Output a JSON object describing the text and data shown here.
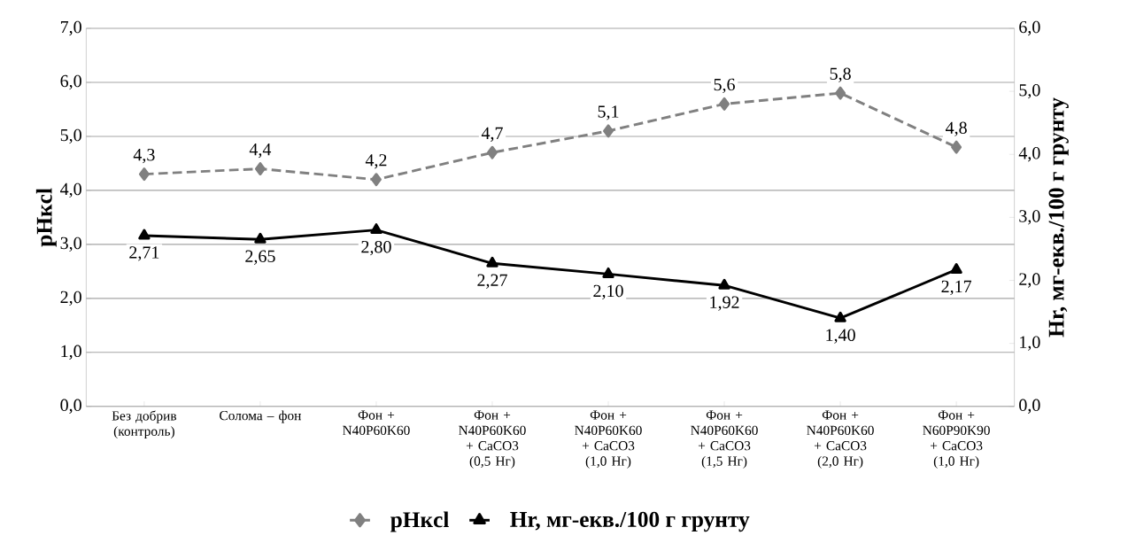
{
  "chart_data": {
    "type": "line",
    "categories": [
      "Без добрив (контроль)",
      "Солома – фон",
      "Фон + N40P60K60",
      "Фон + N40P60K60 + CaCO3 (0,5 Нг)",
      "Фон + N40P60K60 + CaCO3 (1,0 Нг)",
      "Фон + N40P60K60 + CaCO3 (1,5 Нг)",
      "Фон + N40P60K60 + CaCO3 (2,0 Нг)",
      "Фон + N60P90K90 + CaCO3 (1,0 Нг)"
    ],
    "series": [
      {
        "name": "pHкcl",
        "color": "#808080",
        "marker": "diamond",
        "line_style": "dashed",
        "values": [
          4.3,
          4.4,
          4.2,
          4.7,
          5.1,
          5.6,
          5.8,
          4.8
        ],
        "value_labels": [
          "4,3",
          "4,4",
          "4,2",
          "4,7",
          "5,1",
          "5,6",
          "5,8",
          "4,8"
        ]
      },
      {
        "name": "Hr, мг-екв./100 г грунту",
        "color": "#000000",
        "marker": "triangle",
        "line_style": "solid",
        "axis": "y2",
        "values": [
          2.71,
          2.65,
          2.8,
          2.27,
          2.1,
          1.92,
          1.4,
          2.17
        ],
        "value_labels": [
          "2,71",
          "2,65",
          "2,80",
          "2,27",
          "2,10",
          "1,92",
          "1,40",
          "2,17"
        ]
      }
    ],
    "ylabel": "pHкcl",
    "y2label": "Hr, мг-екв./100 г грунту",
    "ylim": [
      0,
      7
    ],
    "yticks": [
      {
        "value": 0,
        "label": "0,0"
      },
      {
        "value": 1,
        "label": "1,0"
      },
      {
        "value": 2,
        "label": "2,0"
      },
      {
        "value": 3,
        "label": "3,0"
      },
      {
        "value": 4,
        "label": "4,0"
      },
      {
        "value": 5,
        "label": "5,0"
      },
      {
        "value": 6,
        "label": "6,0"
      },
      {
        "value": 7,
        "label": "7,0"
      }
    ],
    "y2lim": [
      0,
      6
    ],
    "y2ticks": [
      {
        "value": 0,
        "label": "0,0"
      },
      {
        "value": 1,
        "label": "1,0"
      },
      {
        "value": 2,
        "label": "2,0"
      },
      {
        "value": 3,
        "label": "3,0"
      },
      {
        "value": 4,
        "label": "4,0"
      },
      {
        "value": 5,
        "label": "5,0"
      },
      {
        "value": 6,
        "label": "6,0"
      }
    ],
    "grid": "y",
    "legend": "bottom"
  }
}
